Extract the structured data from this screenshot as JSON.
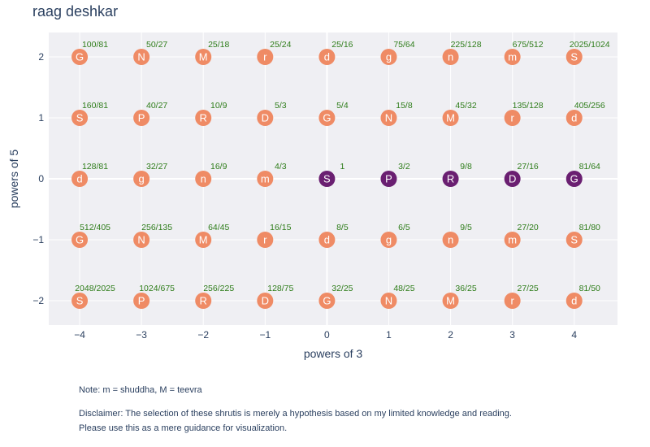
{
  "title": "raag deshkar",
  "note": "Note: m = shuddha, M = teevra",
  "disclaimer_line1": "Disclaimer: The selection of these shrutis is merely a hypothesis based on my limited knowledge and reading.",
  "disclaimer_line2": "Please use this as a mere guidance for visualization.",
  "colors": {
    "in_raag": "#6a1f71",
    "not_in_raag": "#ef8b65",
    "ratio_text": "#2e7d1a",
    "plot_bg": "#efeff3"
  },
  "chart_data": {
    "type": "scatter",
    "title": "raag deshkar",
    "xlabel": "powers of 3",
    "ylabel": "powers of 5",
    "xlim": [
      -4.5,
      4.7
    ],
    "ylim": [
      -2.4,
      2.4
    ],
    "xticks": [
      -4,
      -3,
      -2,
      -1,
      0,
      1,
      2,
      3,
      4
    ],
    "xtick_labels": [
      "−4",
      "−3",
      "−2",
      "−1",
      "0",
      "1",
      "2",
      "3",
      "4"
    ],
    "yticks": [
      -2,
      -1,
      0,
      1,
      2
    ],
    "ytick_labels": [
      "−2",
      "−1",
      "0",
      "1",
      "2"
    ],
    "grid": true,
    "legend": "none",
    "points": [
      {
        "x": -4,
        "y": 2,
        "note": "G",
        "ratio": "100/81",
        "in_raag": false
      },
      {
        "x": -3,
        "y": 2,
        "note": "N",
        "ratio": "50/27",
        "in_raag": false
      },
      {
        "x": -2,
        "y": 2,
        "note": "M",
        "ratio": "25/18",
        "in_raag": false
      },
      {
        "x": -1,
        "y": 2,
        "note": "r",
        "ratio": "25/24",
        "in_raag": false
      },
      {
        "x": 0,
        "y": 2,
        "note": "d",
        "ratio": "25/16",
        "in_raag": false
      },
      {
        "x": 1,
        "y": 2,
        "note": "g",
        "ratio": "75/64",
        "in_raag": false
      },
      {
        "x": 2,
        "y": 2,
        "note": "n",
        "ratio": "225/128",
        "in_raag": false
      },
      {
        "x": 3,
        "y": 2,
        "note": "m",
        "ratio": "675/512",
        "in_raag": false
      },
      {
        "x": 4,
        "y": 2,
        "note": "S",
        "ratio": "2025/1024",
        "in_raag": false
      },
      {
        "x": -4,
        "y": 1,
        "note": "S",
        "ratio": "160/81",
        "in_raag": false
      },
      {
        "x": -3,
        "y": 1,
        "note": "P",
        "ratio": "40/27",
        "in_raag": false
      },
      {
        "x": -2,
        "y": 1,
        "note": "R",
        "ratio": "10/9",
        "in_raag": false
      },
      {
        "x": -1,
        "y": 1,
        "note": "D",
        "ratio": "5/3",
        "in_raag": false
      },
      {
        "x": 0,
        "y": 1,
        "note": "G",
        "ratio": "5/4",
        "in_raag": false
      },
      {
        "x": 1,
        "y": 1,
        "note": "N",
        "ratio": "15/8",
        "in_raag": false
      },
      {
        "x": 2,
        "y": 1,
        "note": "M",
        "ratio": "45/32",
        "in_raag": false
      },
      {
        "x": 3,
        "y": 1,
        "note": "r",
        "ratio": "135/128",
        "in_raag": false
      },
      {
        "x": 4,
        "y": 1,
        "note": "d",
        "ratio": "405/256",
        "in_raag": false
      },
      {
        "x": -4,
        "y": 0,
        "note": "d",
        "ratio": "128/81",
        "in_raag": false
      },
      {
        "x": -3,
        "y": 0,
        "note": "g",
        "ratio": "32/27",
        "in_raag": false
      },
      {
        "x": -2,
        "y": 0,
        "note": "n",
        "ratio": "16/9",
        "in_raag": false
      },
      {
        "x": -1,
        "y": 0,
        "note": "m",
        "ratio": "4/3",
        "in_raag": false
      },
      {
        "x": 0,
        "y": 0,
        "note": "S",
        "ratio": "1",
        "in_raag": true
      },
      {
        "x": 1,
        "y": 0,
        "note": "P",
        "ratio": "3/2",
        "in_raag": true
      },
      {
        "x": 2,
        "y": 0,
        "note": "R",
        "ratio": "9/8",
        "in_raag": true
      },
      {
        "x": 3,
        "y": 0,
        "note": "D",
        "ratio": "27/16",
        "in_raag": true
      },
      {
        "x": 4,
        "y": 0,
        "note": "G",
        "ratio": "81/64",
        "in_raag": true
      },
      {
        "x": -4,
        "y": -1,
        "note": "G",
        "ratio": "512/405",
        "in_raag": false
      },
      {
        "x": -3,
        "y": -1,
        "note": "N",
        "ratio": "256/135",
        "in_raag": false
      },
      {
        "x": -2,
        "y": -1,
        "note": "M",
        "ratio": "64/45",
        "in_raag": false
      },
      {
        "x": -1,
        "y": -1,
        "note": "r",
        "ratio": "16/15",
        "in_raag": false
      },
      {
        "x": 0,
        "y": -1,
        "note": "d",
        "ratio": "8/5",
        "in_raag": false
      },
      {
        "x": 1,
        "y": -1,
        "note": "g",
        "ratio": "6/5",
        "in_raag": false
      },
      {
        "x": 2,
        "y": -1,
        "note": "n",
        "ratio": "9/5",
        "in_raag": false
      },
      {
        "x": 3,
        "y": -1,
        "note": "m",
        "ratio": "27/20",
        "in_raag": false
      },
      {
        "x": 4,
        "y": -1,
        "note": "S",
        "ratio": "81/80",
        "in_raag": false
      },
      {
        "x": -4,
        "y": -2,
        "note": "S",
        "ratio": "2048/2025",
        "in_raag": false
      },
      {
        "x": -3,
        "y": -2,
        "note": "P",
        "ratio": "1024/675",
        "in_raag": false
      },
      {
        "x": -2,
        "y": -2,
        "note": "R",
        "ratio": "256/225",
        "in_raag": false
      },
      {
        "x": -1,
        "y": -2,
        "note": "D",
        "ratio": "128/75",
        "in_raag": false
      },
      {
        "x": 0,
        "y": -2,
        "note": "G",
        "ratio": "32/25",
        "in_raag": false
      },
      {
        "x": 1,
        "y": -2,
        "note": "N",
        "ratio": "48/25",
        "in_raag": false
      },
      {
        "x": 2,
        "y": -2,
        "note": "M",
        "ratio": "36/25",
        "in_raag": false
      },
      {
        "x": 3,
        "y": -2,
        "note": "r",
        "ratio": "27/25",
        "in_raag": false
      },
      {
        "x": 4,
        "y": -2,
        "note": "d",
        "ratio": "81/50",
        "in_raag": false
      }
    ]
  }
}
